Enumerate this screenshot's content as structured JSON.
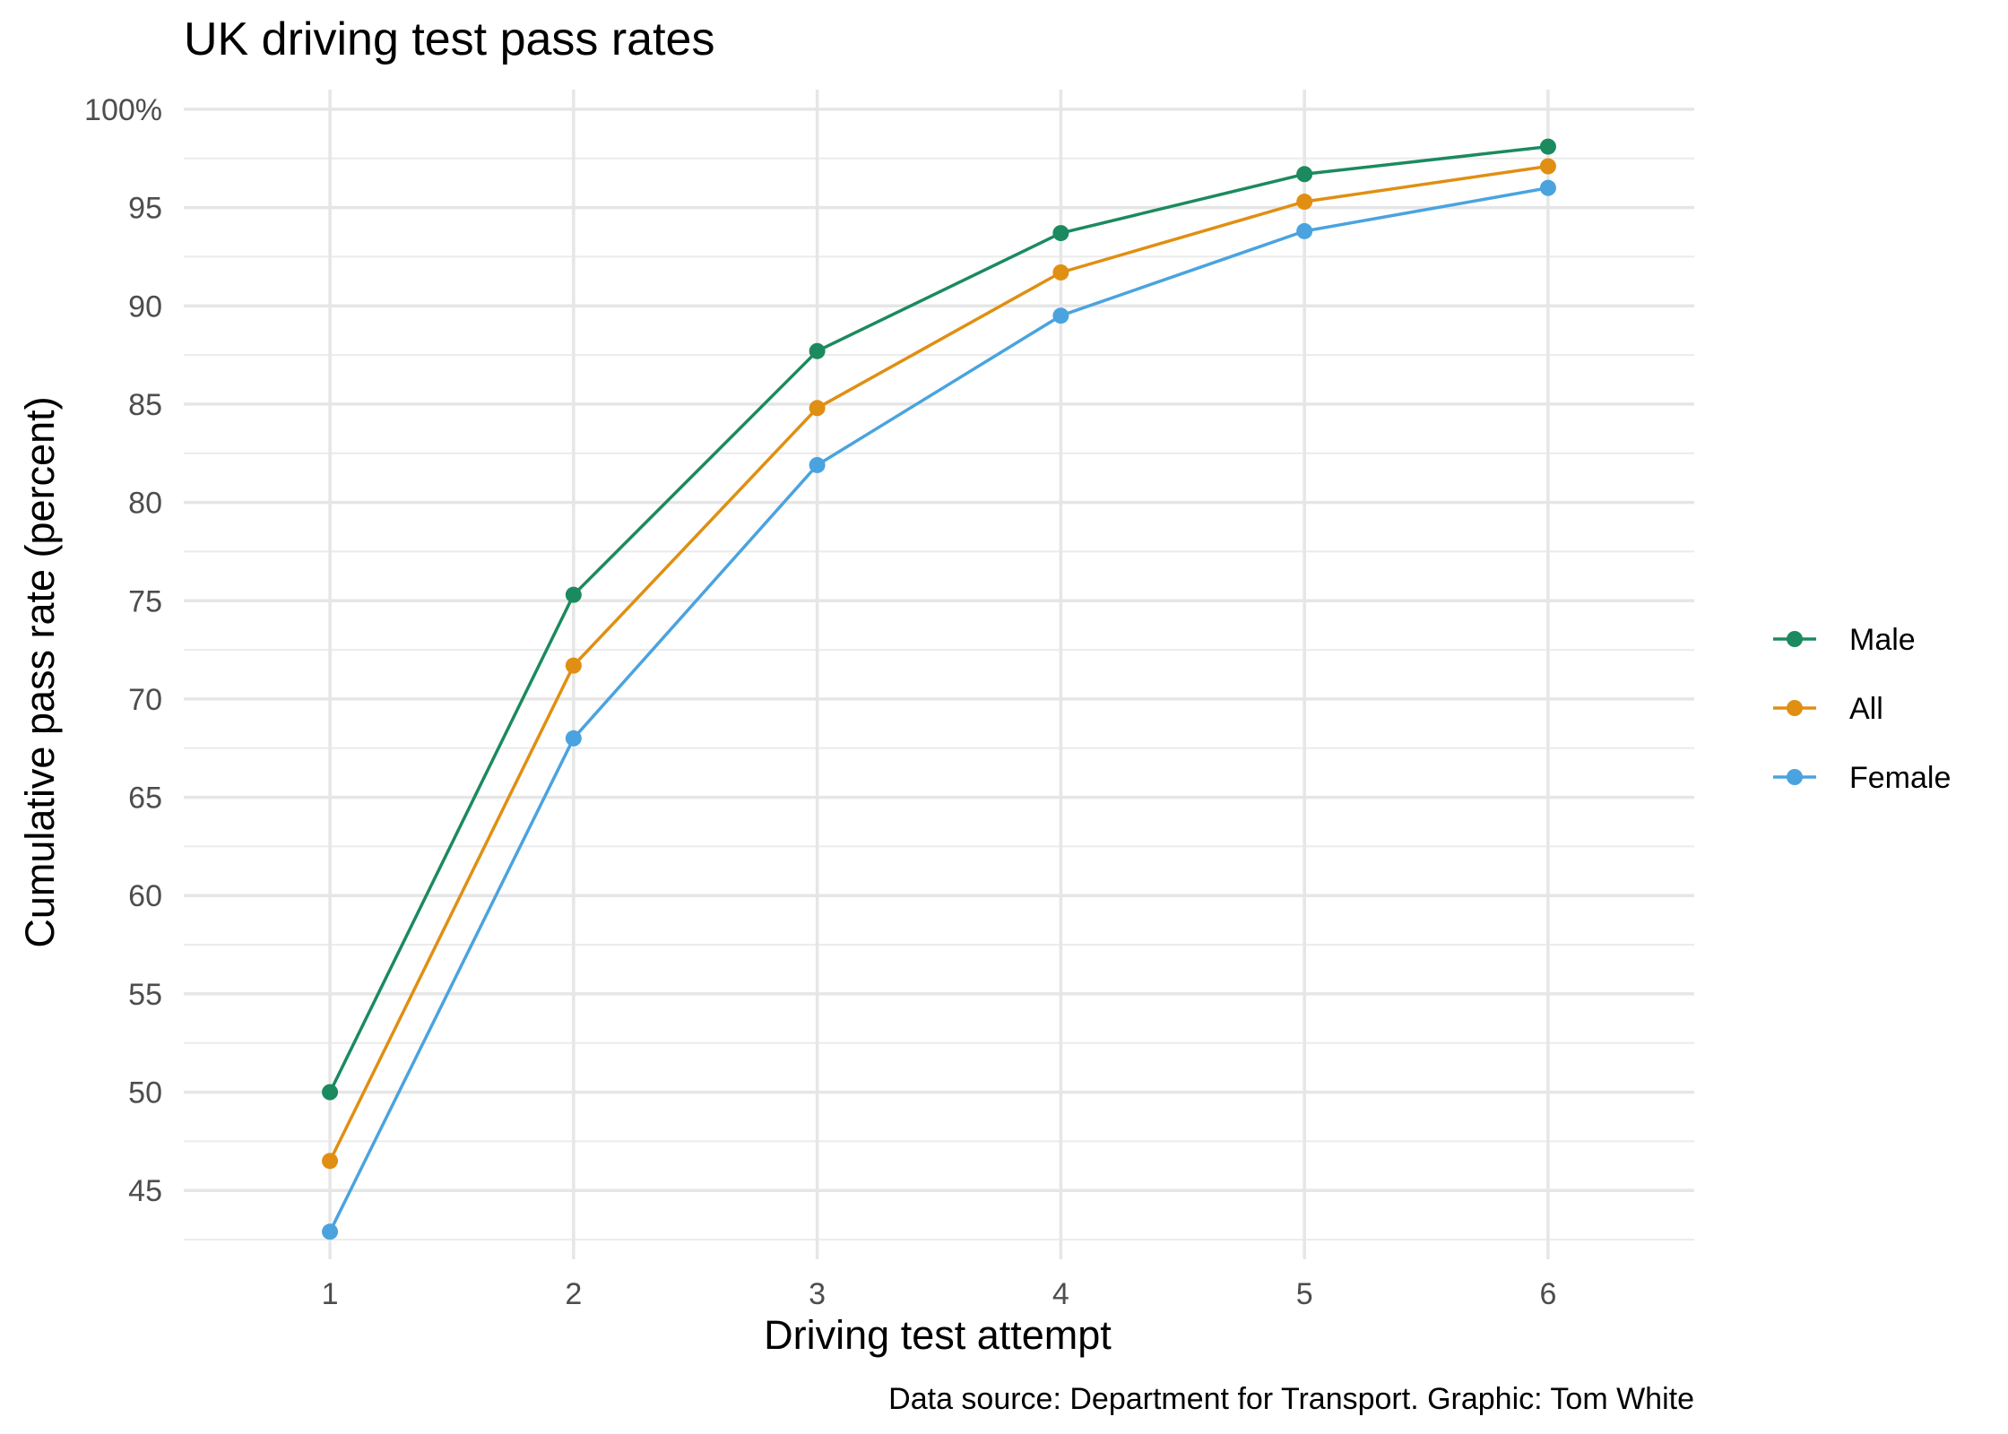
{
  "chart_data": {
    "type": "line",
    "title": "UK driving test pass rates",
    "xlabel": "Driving test attempt",
    "ylabel": "Cumulative pass rate (percent)",
    "caption": "Data source: Department for Transport. Graphic: Tom White",
    "x": [
      1,
      2,
      3,
      4,
      5,
      6
    ],
    "xlim": [
      0.4,
      6.6
    ],
    "ylim": [
      41.5,
      101
    ],
    "y_ticks": [
      "45",
      "50",
      "55",
      "60",
      "65",
      "70",
      "75",
      "80",
      "85",
      "90",
      "95",
      "100%"
    ],
    "y_tick_values": [
      45,
      50,
      55,
      60,
      65,
      70,
      75,
      80,
      85,
      90,
      95,
      100
    ],
    "grid": true,
    "legend_position": "right",
    "series": [
      {
        "name": "Male",
        "color": "#1b8a5f",
        "values": [
          50.0,
          75.3,
          87.7,
          93.7,
          96.7,
          98.1
        ]
      },
      {
        "name": "All",
        "color": "#e08f12",
        "values": [
          46.5,
          71.7,
          84.8,
          91.7,
          95.3,
          97.1
        ]
      },
      {
        "name": "Female",
        "color": "#4aa3df",
        "values": [
          42.9,
          68.0,
          81.9,
          89.5,
          93.8,
          96.0
        ]
      }
    ]
  }
}
